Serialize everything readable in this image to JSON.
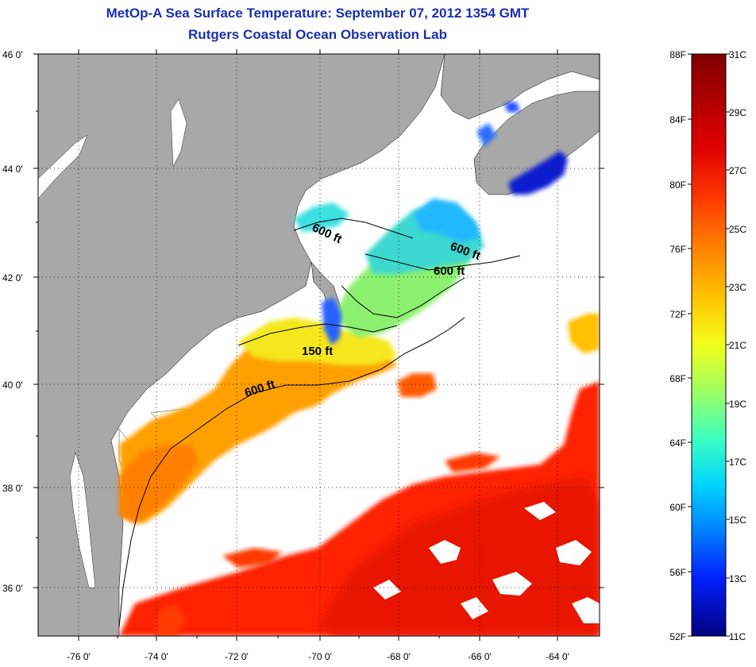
{
  "header": {
    "title": "MetOp-A Sea Surface Temperature:  September 07, 2012 1354 GMT",
    "subtitle": "Rutgers Coastal Ocean Observation Lab"
  },
  "map": {
    "lat_range": [
      35,
      46
    ],
    "lon_range": [
      -77,
      -63
    ],
    "lat_ticks": [
      "46 0'",
      "44 0'",
      "42 0'",
      "40 0'",
      "38 0'",
      "36 0'"
    ],
    "lon_ticks": [
      "-76 0'",
      "-74 0'",
      "-72 0'",
      "-70 0'",
      "-68 0'",
      "-66 0'",
      "-64 0'"
    ],
    "contour_labels": [
      "600 ft",
      "600 ft",
      "600 ft",
      "150 ft",
      "600 ft"
    ],
    "colors": {
      "land": "#a8a8a8",
      "no_data": "#ffffff",
      "isobath": "#000000",
      "grid": "#000000"
    }
  },
  "colorbar": {
    "fahrenheit_labels": [
      "88F",
      "84F",
      "80F",
      "76F",
      "72F",
      "68F",
      "64F",
      "60F",
      "56F",
      "52F"
    ],
    "celsius_labels": [
      "31C",
      "29C",
      "27C",
      "25C",
      "23C",
      "21C",
      "19C",
      "17C",
      "15C",
      "13C",
      "11C"
    ],
    "gradient_stops": [
      "#7f0000",
      "#d40000",
      "#ff2a00",
      "#ff7f00",
      "#ffd400",
      "#d4ff2a",
      "#7fff7f",
      "#2affd4",
      "#00d4ff",
      "#007fff",
      "#002aff",
      "#0000d4",
      "#00007f"
    ]
  }
}
